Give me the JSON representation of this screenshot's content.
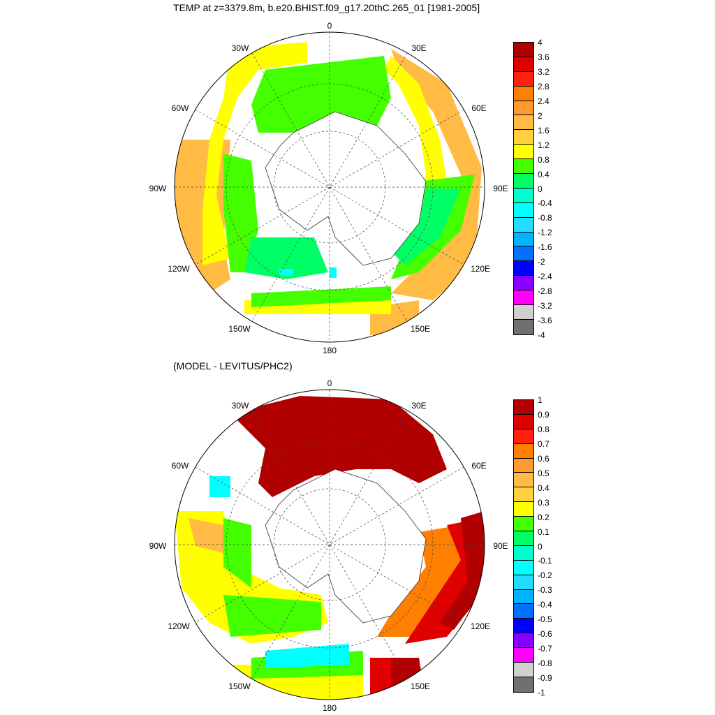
{
  "panels": [
    {
      "title": "TEMP at z=3379.8m, b.e20.BHIST.f09_g17.20thC.265_01 [1981-2005]",
      "longitude_labels": [
        "0",
        "30E",
        "60E",
        "90E",
        "120E",
        "150E",
        "180",
        "150W",
        "120W",
        "90W",
        "60W",
        "30W"
      ],
      "colorbar": {
        "labels": [
          "4",
          "3.6",
          "3.2",
          "2.8",
          "2.4",
          "2",
          "1.6",
          "1.2",
          "0.8",
          "0.4",
          "0",
          "-0.4",
          "-0.8",
          "-1.2",
          "-1.6",
          "-2",
          "-2.4",
          "-2.8",
          "-3.2",
          "-3.6",
          "-4"
        ],
        "colors": [
          "#b00000",
          "#e00000",
          "#ff2010",
          "#ff8000",
          "#ff9a2e",
          "#ffbb44",
          "#ffd040",
          "#ffff00",
          "#44ff00",
          "#00ff66",
          "#00ffcc",
          "#00ffff",
          "#22ddff",
          "#00b4ff",
          "#0070ff",
          "#0000ff",
          "#8800ff",
          "#ff00ff",
          "#d0d0d0",
          "#707070"
        ]
      },
      "regions": [
        {
          "name": "weddell-green",
          "color": "#44ff00"
        },
        {
          "name": "atlantic-yellow",
          "color": "#ffff00"
        },
        {
          "name": "indian-orange",
          "color": "#ffbb44"
        },
        {
          "name": "pacific-orange",
          "color": "#ffbb44"
        },
        {
          "name": "ross-teal",
          "color": "#00ff66"
        }
      ]
    },
    {
      "title": "(MODEL - LEVITUS/PHC2)",
      "longitude_labels": [
        "0",
        "30E",
        "60E",
        "90E",
        "120E",
        "150E",
        "180",
        "150W",
        "120W",
        "90W",
        "60W",
        "30W"
      ],
      "colorbar": {
        "labels": [
          "1",
          "0.9",
          "0.8",
          "0.7",
          "0.6",
          "0.5",
          "0.4",
          "0.3",
          "0.2",
          "0.1",
          "0",
          "-0.1",
          "-0.2",
          "-0.3",
          "-0.4",
          "-0.5",
          "-0.6",
          "-0.7",
          "-0.8",
          "-0.9",
          "-1"
        ],
        "colors": [
          "#b00000",
          "#e00000",
          "#ff2010",
          "#ff8000",
          "#ff9a2e",
          "#ffbb44",
          "#ffd040",
          "#ffff00",
          "#44ff00",
          "#00ff66",
          "#00ffcc",
          "#00ffff",
          "#22ddff",
          "#00b4ff",
          "#0070ff",
          "#0000ff",
          "#8800ff",
          "#ff00ff",
          "#d0d0d0",
          "#707070"
        ]
      },
      "regions": [
        {
          "name": "weddell-darkred",
          "color": "#b00000"
        },
        {
          "name": "indian-darkred",
          "color": "#b00000"
        },
        {
          "name": "pacific-yellow",
          "color": "#ffff00"
        },
        {
          "name": "ross-cyan",
          "color": "#00ffff"
        }
      ]
    }
  ]
}
